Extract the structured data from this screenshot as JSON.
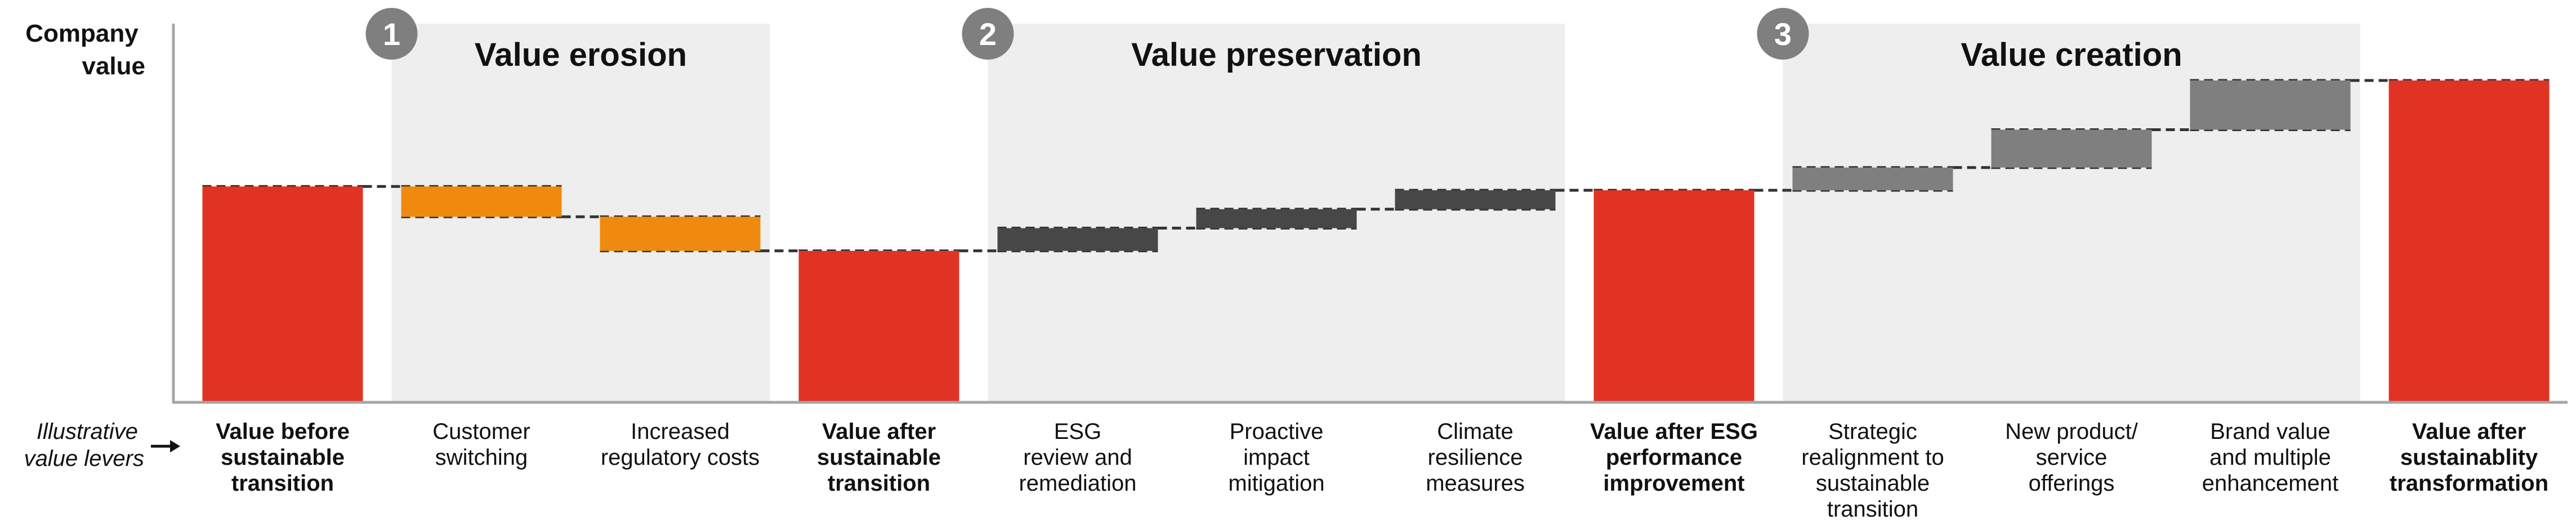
{
  "colors": {
    "total": "#e03323",
    "erosion": "#ef8a0e",
    "preservation": "#474747",
    "creation": "#7f7f7f",
    "section_bg": "#eeeeee",
    "badge": "#7f7f7f",
    "axis": "#a6a6a6",
    "connector": "#333333"
  },
  "y_axis_title": [
    "Company",
    "value"
  ],
  "levers_label": [
    "Illustrative",
    "value levers"
  ],
  "sections": [
    {
      "number": "1",
      "title": "Value erosion"
    },
    {
      "number": "2",
      "title": "Value preservation"
    },
    {
      "number": "3",
      "title": "Value creation"
    }
  ],
  "chart_data": {
    "type": "bar",
    "subtype": "waterfall",
    "ylabel": "Company value",
    "ylim": [
      0,
      100
    ],
    "grid": false,
    "categories": [
      {
        "label": [
          "Value before",
          "sustainable",
          "transition"
        ],
        "kind": "total",
        "bold": true,
        "value": 57
      },
      {
        "label": [
          "Customer",
          "switching"
        ],
        "kind": "erosion",
        "bold": false,
        "start": 57,
        "end": 49
      },
      {
        "label": [
          "Increased",
          "regulatory costs"
        ],
        "kind": "erosion",
        "bold": false,
        "start": 49,
        "end": 40
      },
      {
        "label": [
          "Value after",
          "sustainable",
          "transition"
        ],
        "kind": "total",
        "bold": true,
        "value": 40
      },
      {
        "label": [
          "ESG",
          "review and",
          "remediation"
        ],
        "kind": "preservation",
        "bold": false,
        "start": 40,
        "end": 46
      },
      {
        "label": [
          "Proactive",
          "impact",
          "mitigation"
        ],
        "kind": "preservation",
        "bold": false,
        "start": 46,
        "end": 51
      },
      {
        "label": [
          "Climate",
          "resilience",
          "measures"
        ],
        "kind": "preservation",
        "bold": false,
        "start": 51,
        "end": 56
      },
      {
        "label": [
          "Value after ESG",
          "performance",
          "improvement"
        ],
        "kind": "total",
        "bold": true,
        "value": 56
      },
      {
        "label": [
          "Strategic",
          "realignment to",
          "sustainable",
          "transition"
        ],
        "kind": "creation",
        "bold": false,
        "start": 56,
        "end": 62
      },
      {
        "label": [
          "New product/",
          "service",
          "offerings"
        ],
        "kind": "creation",
        "bold": false,
        "start": 62,
        "end": 72
      },
      {
        "label": [
          "Brand value",
          "and multiple",
          "enhancement"
        ],
        "kind": "creation",
        "bold": false,
        "start": 72,
        "end": 85
      },
      {
        "label": [
          "Value after",
          "sustainablity",
          "transformation"
        ],
        "kind": "total",
        "bold": true,
        "value": 85
      }
    ]
  }
}
